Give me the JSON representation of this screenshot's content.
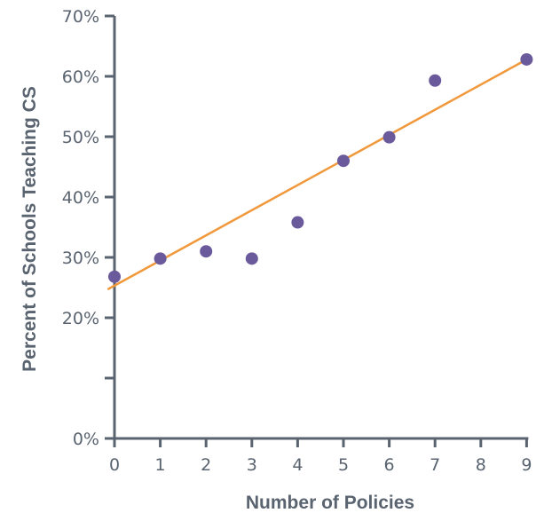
{
  "chart_data": {
    "type": "scatter",
    "xlabel": "Number of Policies",
    "ylabel": "Percent of Schools Teaching CS",
    "x_ticks": [
      0,
      1,
      2,
      3,
      4,
      5,
      6,
      7,
      8,
      9
    ],
    "x_tick_labels": [
      "0",
      "1",
      "2",
      "3",
      "4",
      "5",
      "6",
      "7",
      "8",
      "9"
    ],
    "y_ticks": [
      0,
      10,
      20,
      30,
      40,
      50,
      60,
      70
    ],
    "y_tick_labels": [
      "0%",
      "",
      "20%",
      "30%",
      "40%",
      "50%",
      "60%",
      "70%"
    ],
    "xlim": [
      0,
      9
    ],
    "ylim": [
      0,
      70
    ],
    "grid": false,
    "series": [
      {
        "points": [
          {
            "x": 0,
            "y": 26.8
          },
          {
            "x": 1,
            "y": 29.8
          },
          {
            "x": 2,
            "y": 31.0
          },
          {
            "x": 3,
            "y": 29.8
          },
          {
            "x": 4,
            "y": 35.8
          },
          {
            "x": 5,
            "y": 46.0
          },
          {
            "x": 6,
            "y": 49.9
          },
          {
            "x": 7,
            "y": 59.3
          },
          {
            "x": 9,
            "y": 62.8
          }
        ]
      }
    ],
    "trendline": {
      "type": "linear",
      "from": [
        -0.15,
        24.7
      ],
      "to": [
        9.05,
        63.0
      ]
    },
    "colors": {
      "points": "#6a5a9c",
      "trendline": "#f0983a",
      "axis": "#5a6470"
    }
  }
}
